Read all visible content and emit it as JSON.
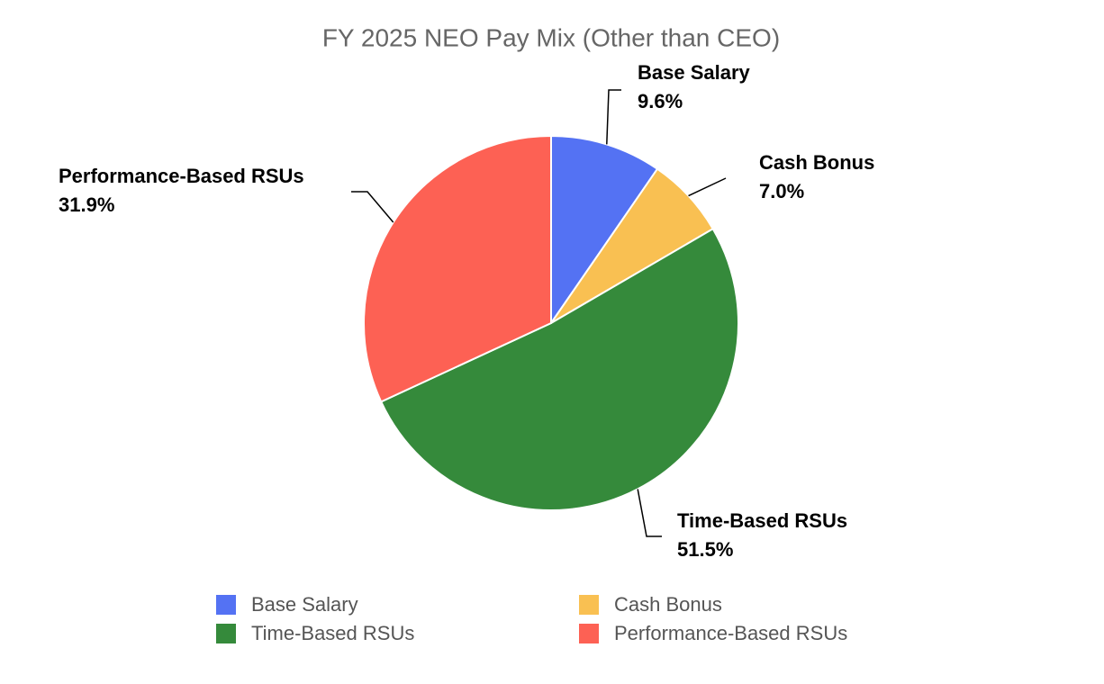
{
  "chart_data": {
    "type": "pie",
    "title": "FY 2025 NEO Pay Mix (Other than CEO)",
    "categories": [
      "Base Salary",
      "Cash Bonus",
      "Time-Based RSUs",
      "Performance-Based RSUs"
    ],
    "values": [
      9.6,
      7.0,
      51.5,
      31.9
    ],
    "value_labels": [
      "9.6%",
      "7.0%",
      "51.5%",
      "31.9%"
    ],
    "colors": [
      "#5472f3",
      "#f9c052",
      "#358a3b",
      "#fd6154"
    ]
  }
}
